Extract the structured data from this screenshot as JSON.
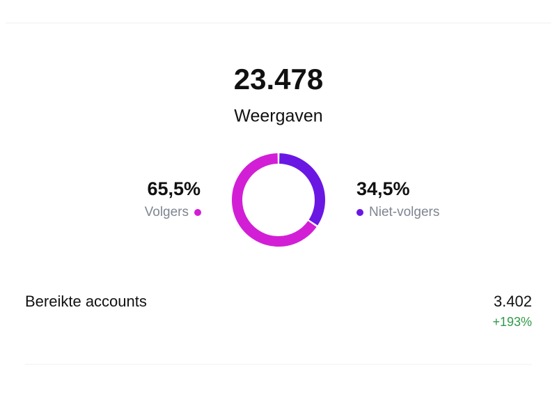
{
  "summary": {
    "value": "23.478",
    "label": "Weergaven"
  },
  "chart_data": {
    "type": "donut",
    "categories": [
      "Volgers",
      "Niet-volgers"
    ],
    "values": [
      65.5,
      34.5
    ],
    "value_labels": [
      "65,5%",
      "34,5%"
    ],
    "colors": [
      "#d21fd6",
      "#6a17e4"
    ]
  },
  "metrics": [
    {
      "label": "Bereikte accounts",
      "value": "3.402",
      "change": "+193%"
    }
  ]
}
